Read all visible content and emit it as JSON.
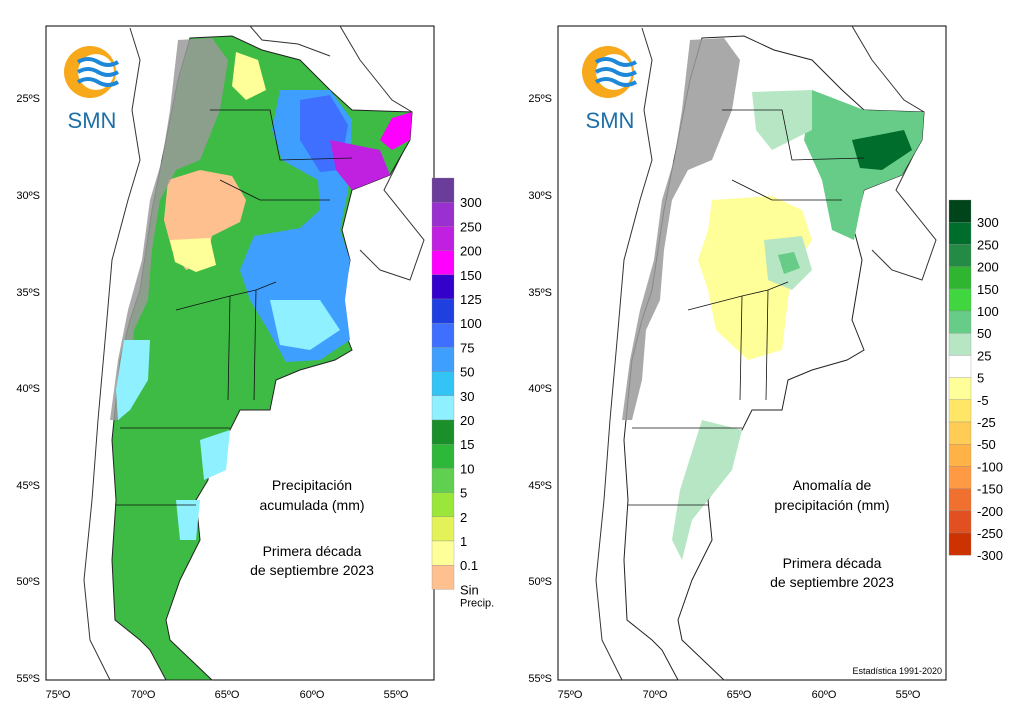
{
  "logo_text": "SMN",
  "left_map": {
    "lat_ticks": [
      "25ºS",
      "30ºS",
      "35ºS",
      "40ºS",
      "45ºS",
      "50ºS",
      "55ºS"
    ],
    "lon_ticks": [
      "75ºO",
      "70ºO",
      "65ºO",
      "60ºO",
      "55ºO"
    ],
    "title_line1": "Precipitación",
    "title_line2": "acumulada (mm)",
    "subtitle_line1": "Primera década",
    "subtitle_line2": "de septiembre 2023",
    "legend": [
      {
        "label": "300",
        "color": "#6a3d9a"
      },
      {
        "label": "250",
        "color": "#9b30d0"
      },
      {
        "label": "200",
        "color": "#c020e0"
      },
      {
        "label": "150",
        "color": "#ff00ff"
      },
      {
        "label": "125",
        "color": "#3300cc"
      },
      {
        "label": "100",
        "color": "#1f3fe0"
      },
      {
        "label": "75",
        "color": "#3f6fff"
      },
      {
        "label": "50",
        "color": "#3f9fff"
      },
      {
        "label": "30",
        "color": "#33c4f5"
      },
      {
        "label": "20",
        "color": "#8ff0ff"
      },
      {
        "label": "15",
        "color": "#1a8f2a"
      },
      {
        "label": "10",
        "color": "#2db83a"
      },
      {
        "label": "5",
        "color": "#5fd050"
      },
      {
        "label": "2",
        "color": "#9ae63a"
      },
      {
        "label": "1",
        "color": "#e4f25a"
      },
      {
        "label": "0.1",
        "color": "#ffff99"
      },
      {
        "label": "Sin\nPrecip.",
        "color": "#ffc090"
      }
    ],
    "legend_extra_line": "Precip."
  },
  "right_map": {
    "lat_ticks": [
      "25ºS",
      "30ºS",
      "35ºS",
      "40ºS",
      "45ºS",
      "50ºS",
      "55ºS"
    ],
    "lon_ticks": [
      "75ºO",
      "70ºO",
      "65ºO",
      "60ºO",
      "55ºO"
    ],
    "title_line1": "Anomalía de",
    "title_line2": "precipitación (mm)",
    "subtitle_line1": "Primera década",
    "subtitle_line2": "de septiembre 2023",
    "footnote": "Estadística 1991-2020",
    "legend": [
      {
        "label": "300",
        "color": "#00441b"
      },
      {
        "label": "250",
        "color": "#006d2c"
      },
      {
        "label": "200",
        "color": "#238b45"
      },
      {
        "label": "150",
        "color": "#2fb52f"
      },
      {
        "label": "100",
        "color": "#3fd63f"
      },
      {
        "label": "50",
        "color": "#66cc88"
      },
      {
        "label": "25",
        "color": "#b7e6c4"
      },
      {
        "label": "5",
        "color": "#ffffff"
      },
      {
        "label": "-5",
        "color": "#ffff99"
      },
      {
        "label": "-25",
        "color": "#ffe666"
      },
      {
        "label": "-50",
        "color": "#ffcc55"
      },
      {
        "label": "-100",
        "color": "#ffb347"
      },
      {
        "label": "-150",
        "color": "#ff9944"
      },
      {
        "label": "-200",
        "color": "#f07030"
      },
      {
        "label": "-250",
        "color": "#e05020"
      },
      {
        "label": "-300",
        "color": "#cc3300"
      }
    ]
  }
}
